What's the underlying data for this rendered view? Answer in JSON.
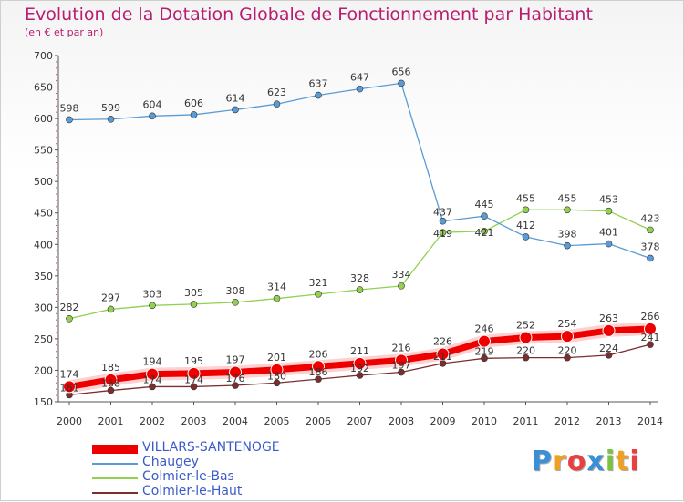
{
  "title": "Evolution de la Dotation Globale de Fonctionnement par Habitant",
  "subtitle": "(en € et par an)",
  "logo": {
    "text": "Proxiti",
    "letters": [
      {
        "ch": "P",
        "color": "#3a8fd6"
      },
      {
        "ch": "r",
        "color": "#f0a020"
      },
      {
        "ch": "o",
        "color": "#e84040"
      },
      {
        "ch": "x",
        "color": "#3a8fd6"
      },
      {
        "ch": "i",
        "color": "#7cc242"
      },
      {
        "ch": "t",
        "color": "#f0a020"
      },
      {
        "ch": "i",
        "color": "#e84040"
      }
    ]
  },
  "chart_data": {
    "type": "line",
    "title": "Evolution de la Dotation Globale de Fonctionnement par Habitant",
    "subtitle": "(en € et par an)",
    "x": [
      "2000",
      "2001",
      "2002",
      "2003",
      "2004",
      "2005",
      "2006",
      "2007",
      "2008",
      "2009",
      "2010",
      "2011",
      "2012",
      "2013",
      "2014"
    ],
    "ylim": [
      150,
      700
    ],
    "yticks": [
      150,
      200,
      250,
      300,
      350,
      400,
      450,
      500,
      550,
      600,
      650,
      700
    ],
    "grid": false,
    "legend_position": "bottom-left",
    "series": [
      {
        "name": "VILLARS-SANTENOGE",
        "color": "#ee0000",
        "values": [
          174,
          185,
          194,
          195,
          197,
          201,
          206,
          211,
          216,
          226,
          246,
          252,
          254,
          263,
          266
        ],
        "labels_shown": [
          false,
          true,
          true,
          true,
          true,
          true,
          true,
          true,
          true,
          true,
          true,
          true,
          true,
          true,
          true
        ],
        "label_text": [
          "174",
          "185",
          "194",
          "195",
          "197",
          "201",
          "206",
          "211",
          "216",
          "226",
          "246",
          "252",
          "254",
          "263",
          "266"
        ]
      },
      {
        "name": "Chaugey",
        "color": "#5b9bd5",
        "values": [
          598,
          599,
          604,
          606,
          614,
          623,
          637,
          647,
          656,
          437,
          445,
          412,
          398,
          401,
          378
        ],
        "label_text": [
          "598",
          "599",
          "604",
          "606",
          "614",
          "623",
          "637",
          "647",
          "656",
          "437",
          "445",
          "412",
          "398",
          "401",
          "378"
        ]
      },
      {
        "name": "Colmier-le-Bas",
        "color": "#92d050",
        "values": [
          282,
          297,
          303,
          305,
          308,
          314,
          321,
          328,
          334,
          419,
          421,
          455,
          455,
          453,
          423
        ],
        "label_text": [
          "282",
          "297",
          "303",
          "305",
          "308",
          "314",
          "321",
          "328",
          "334",
          "419",
          "421",
          "455",
          "455",
          "453",
          "423"
        ]
      },
      {
        "name": "Colmier-le-Haut",
        "color": "#7b2e2e",
        "values": [
          161,
          168,
          174,
          174,
          176,
          180,
          186,
          192,
          197,
          211,
          219,
          220,
          220,
          224,
          241
        ],
        "label_text": [
          "161",
          "168",
          "174",
          "174",
          "176",
          "180",
          "186",
          "192",
          "197",
          "211",
          "219",
          "220",
          "220",
          "224",
          "241"
        ]
      }
    ]
  }
}
